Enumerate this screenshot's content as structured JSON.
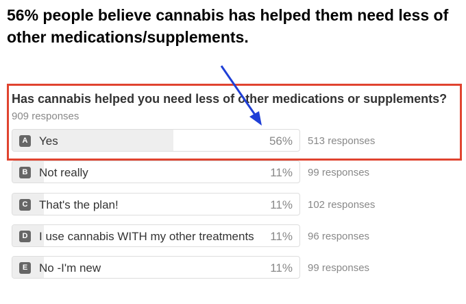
{
  "headline": "56% people believe cannabis has helped them need less of other medications/supplements.",
  "poll": {
    "question": "Has cannabis helped you need less of other medications or supplements?",
    "total": "909 responses",
    "options": [
      {
        "letter": "A",
        "label": "Yes",
        "percent": 56,
        "percent_label": "56%",
        "responses": "513 responses"
      },
      {
        "letter": "B",
        "label": "Not really",
        "percent": 11,
        "percent_label": "11%",
        "responses": "99 responses"
      },
      {
        "letter": "C",
        "label": "That's the plan!",
        "percent": 11,
        "percent_label": "11%",
        "responses": "102 responses"
      },
      {
        "letter": "D",
        "label": "I use cannabis WITH my other treatments",
        "percent": 11,
        "percent_label": "11%",
        "responses": "96 responses"
      },
      {
        "letter": "E",
        "label": "No -I'm new",
        "percent": 11,
        "percent_label": "11%",
        "responses": "99 responses"
      }
    ]
  }
}
